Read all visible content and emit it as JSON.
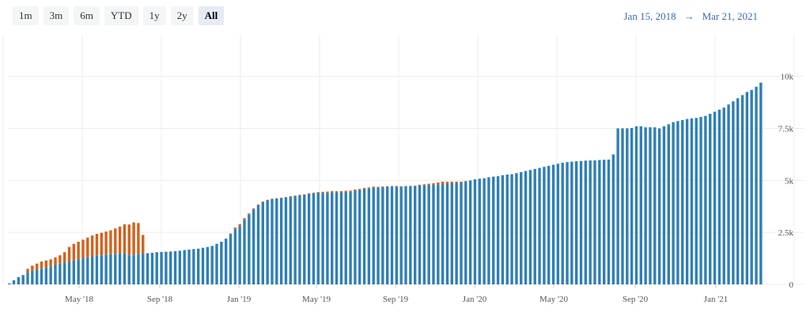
{
  "range_selector": {
    "buttons": [
      {
        "label": "1m",
        "active": false
      },
      {
        "label": "3m",
        "active": false
      },
      {
        "label": "6m",
        "active": false
      },
      {
        "label": "YTD",
        "active": false
      },
      {
        "label": "1y",
        "active": false
      },
      {
        "label": "2y",
        "active": false
      },
      {
        "label": "All",
        "active": true
      }
    ]
  },
  "date_range": {
    "from": "Jan 15, 2018",
    "arrow": "→",
    "to": "Mar 21, 2021"
  },
  "colors": {
    "blue": "#2f7fb5",
    "orange": "#d2611c",
    "grid": "#ececec",
    "accent": "#3d6ab0"
  },
  "chart_data": {
    "type": "bar",
    "stacked": true,
    "x_ticks": [
      "May '18",
      "Sep '18",
      "Jan '19",
      "May '19",
      "Sep '19",
      "Jan '20",
      "May '20",
      "Sep '20",
      "Jan '21"
    ],
    "y_ticks": [
      "0",
      "2.5k",
      "5k",
      "7.5k",
      "10k"
    ],
    "ylim": [
      0,
      12000
    ],
    "grid": true,
    "series": [
      {
        "values": [
          50,
          200,
          350,
          450,
          550,
          650,
          700,
          750,
          800,
          850,
          950,
          1000,
          1050,
          1100,
          1150,
          1200,
          1250,
          1300,
          1350,
          1380,
          1400,
          1420,
          1450,
          1470,
          1480,
          1490,
          1400,
          1430,
          1450,
          1480,
          1500,
          1520,
          1550,
          1560,
          1570,
          1580,
          1600,
          1620,
          1650,
          1670,
          1700,
          1720,
          1760,
          1800,
          1850,
          1950,
          2050,
          2200,
          2400,
          2650,
          2800,
          3100,
          3350,
          3600,
          3800,
          3950,
          4050,
          4100,
          4120,
          4150,
          4180,
          4220,
          4250,
          4280,
          4300,
          4350,
          4380,
          4400,
          4400,
          4400,
          4420,
          4420,
          4420,
          4440,
          4450,
          4500,
          4550,
          4600,
          4620,
          4660,
          4660,
          4680,
          4690,
          4700,
          4700,
          4700,
          4710,
          4720,
          4720,
          4750,
          4760,
          4780,
          4780,
          4800,
          4820,
          4840,
          4860,
          4880,
          4900,
          4950,
          5000,
          5050,
          5080,
          5100,
          5150,
          5180,
          5200,
          5250,
          5280,
          5300,
          5350,
          5400,
          5450,
          5500,
          5550,
          5600,
          5650,
          5700,
          5750,
          5800,
          5850,
          5880,
          5900,
          5920,
          5930,
          5950,
          5960,
          5960,
          5980,
          5990,
          6000,
          6250,
          7500,
          7500,
          7500,
          7520,
          7600,
          7600,
          7550,
          7550,
          7550,
          7500,
          7600,
          7700,
          7800,
          7850,
          7900,
          7950,
          7980,
          8000,
          8050,
          8100,
          8200,
          8300,
          8400,
          8500,
          8650,
          8800,
          8950,
          9100,
          9250,
          9350,
          9500,
          9700
        ]
      },
      {
        "values": [
          0,
          0,
          0,
          0,
          200,
          250,
          300,
          350,
          350,
          350,
          350,
          400,
          500,
          700,
          800,
          850,
          900,
          950,
          1000,
          1050,
          1080,
          1120,
          1150,
          1220,
          1300,
          1400,
          1480,
          1550,
          1500,
          900,
          0,
          0,
          0,
          0,
          0,
          0,
          0,
          0,
          0,
          0,
          0,
          0,
          0,
          0,
          0,
          0,
          0,
          0,
          50,
          80,
          100,
          80,
          60,
          50,
          40,
          30,
          20,
          20,
          20,
          20,
          20,
          20,
          20,
          30,
          30,
          30,
          30,
          40,
          50,
          60,
          60,
          60,
          60,
          60,
          60,
          60,
          40,
          40,
          40,
          40,
          30,
          30,
          30,
          30,
          30,
          20,
          20,
          20,
          30,
          40,
          50,
          60,
          80,
          100,
          120,
          100,
          80,
          60,
          40,
          20,
          0,
          0,
          0,
          0,
          0,
          0,
          0,
          0,
          0,
          0,
          0,
          0,
          0,
          0,
          0,
          0,
          0,
          0,
          0,
          0,
          0,
          0,
          0,
          0,
          0,
          0,
          0,
          0,
          0,
          0,
          0,
          0,
          0,
          0,
          0,
          0,
          0,
          0,
          0,
          0,
          0,
          0,
          0,
          0,
          0,
          0,
          0,
          0,
          0,
          0,
          0,
          0,
          0,
          0,
          0,
          0,
          0,
          0,
          0,
          0,
          0,
          0,
          0,
          0,
          0,
          0,
          0,
          0
        ]
      }
    ]
  }
}
